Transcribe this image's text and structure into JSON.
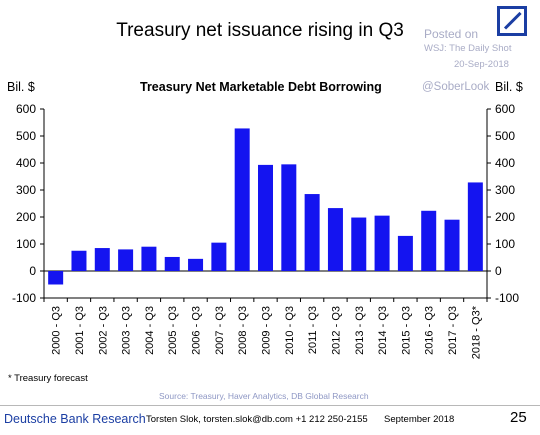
{
  "header": {
    "title": "Treasury net issuance rising in Q3",
    "watermark_posted": "Posted on",
    "watermark_source": "WSJ: The Daily Shot",
    "watermark_date": "20-Sep-2018",
    "watermark_handle": "@SoberLook",
    "logo": "deutsche-bank-logo"
  },
  "chart_data": {
    "type": "bar",
    "title": "Treasury Net Marketable Debt Borrowing",
    "ylabel_left": "Bil. $",
    "ylabel_right": "Bil. $",
    "ylim": [
      -100,
      600
    ],
    "yticks": [
      -100,
      0,
      100,
      200,
      300,
      400,
      500,
      600
    ],
    "grid": false,
    "bar_color": "#1414f0",
    "categories": [
      "2000 - Q3",
      "2001 - Q3",
      "2002 - Q3",
      "2003 - Q3",
      "2004 - Q3",
      "2005 - Q3",
      "2006 - Q3",
      "2007 - Q3",
      "2008 - Q3",
      "2009 - Q3",
      "2010 - Q3",
      "2011 - Q3",
      "2012 - Q3",
      "2013 - Q3",
      "2014 - Q3",
      "2015 - Q3",
      "2016 - Q3",
      "2017 - Q3",
      "2018 - Q3*"
    ],
    "values": [
      -50,
      75,
      85,
      80,
      90,
      52,
      45,
      105,
      528,
      393,
      395,
      285,
      233,
      198,
      205,
      130,
      223,
      190,
      328
    ]
  },
  "footnote": "* Treasury forecast",
  "source": "Source: Treasury, Haver Analytics, DB Global Research",
  "footer": {
    "org": "Deutsche Bank Research",
    "author": "Torsten Slok, torsten.slok@db.com  +1 212 250-2155",
    "date": "September 2018",
    "page": "25"
  }
}
